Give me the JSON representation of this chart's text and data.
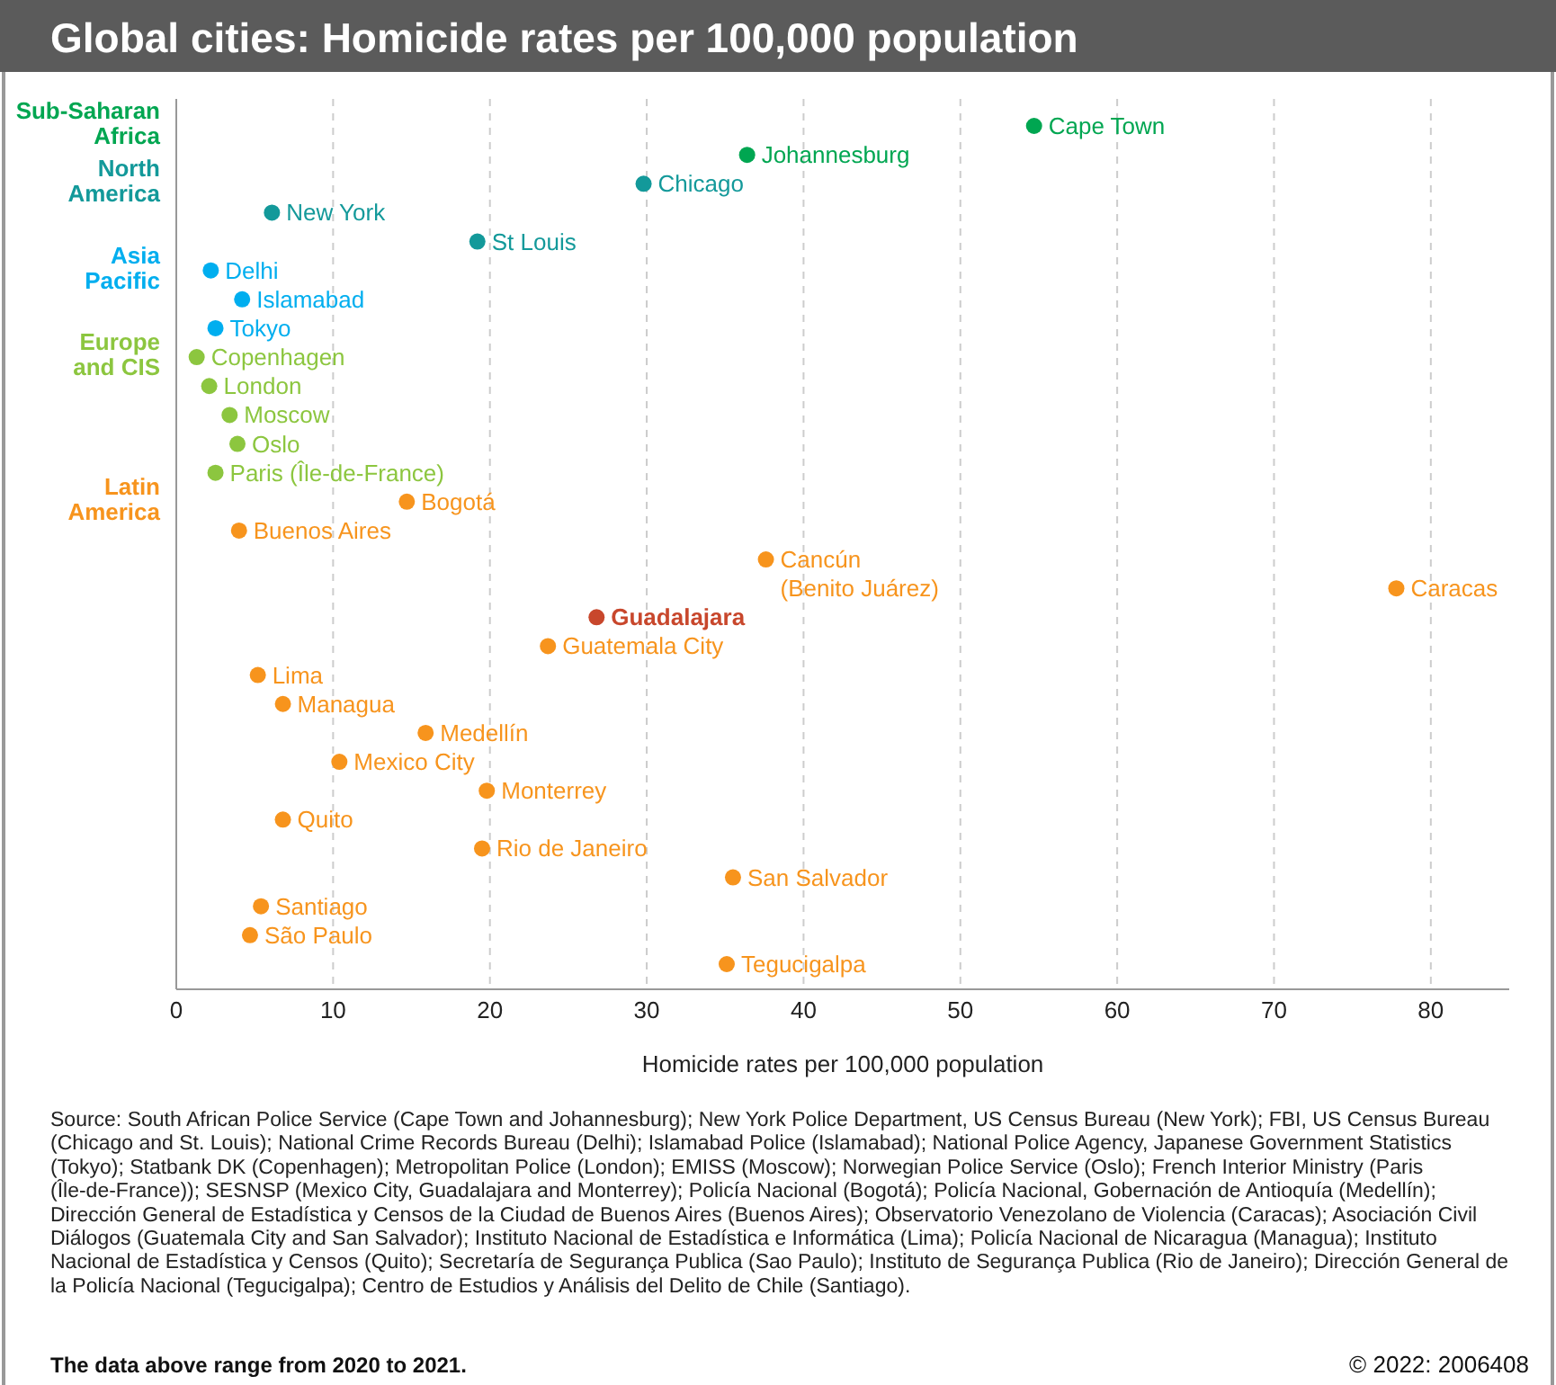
{
  "chart_data": {
    "type": "scatter",
    "orientation": "horizontal",
    "title": "Global cities: Homicide rates per 100,000 population",
    "xlabel": "Homicide rates per 100,000 population",
    "categories": [
      "Cape Town",
      "Johannesburg",
      "Chicago",
      "New York",
      "St Louis",
      "Delhi",
      "Islamabad",
      "Tokyo",
      "Copenhagen",
      "London",
      "Moscow",
      "Oslo",
      "Paris (Île-de-France)",
      "Bogotá",
      "Buenos Aires",
      "Cancún\n(Benito Juárez)",
      "Caracas",
      "Guadalajara",
      "Guatemala City",
      "Lima",
      "Managua",
      "Medellín",
      "Mexico City",
      "Monterrey",
      "Quito",
      "Rio de Janeiro",
      "San Salvador",
      "Santiago",
      "São Paulo",
      "Tegucigalpa"
    ],
    "series": [
      {
        "name": "Sub-Saharan Africa",
        "color": "#00a651",
        "values": [
          54.7,
          36.4,
          null,
          null,
          null,
          null,
          null,
          null,
          null,
          null,
          null,
          null,
          null,
          null,
          null,
          null,
          null,
          null,
          null,
          null,
          null,
          null,
          null,
          null,
          null,
          null,
          null,
          null,
          null,
          null
        ]
      },
      {
        "name": "North America",
        "color": "#13999a",
        "values": [
          null,
          null,
          29.8,
          6.1,
          19.2,
          null,
          null,
          null,
          null,
          null,
          null,
          null,
          null,
          null,
          null,
          null,
          null,
          null,
          null,
          null,
          null,
          null,
          null,
          null,
          null,
          null,
          null,
          null,
          null,
          null
        ]
      },
      {
        "name": "Asia Pacific",
        "color": "#00aeef",
        "values": [
          null,
          null,
          null,
          null,
          null,
          2.2,
          4.2,
          2.5,
          null,
          null,
          null,
          null,
          null,
          null,
          null,
          null,
          null,
          null,
          null,
          null,
          null,
          null,
          null,
          null,
          null,
          null,
          null,
          null,
          null,
          null
        ]
      },
      {
        "name": "Europe and CIS",
        "color": "#8cc63f",
        "values": [
          null,
          null,
          null,
          null,
          null,
          null,
          null,
          null,
          1.3,
          2.1,
          3.4,
          3.9,
          2.5,
          null,
          null,
          null,
          null,
          null,
          null,
          null,
          null,
          null,
          null,
          null,
          null,
          null,
          null,
          null,
          null,
          null
        ]
      },
      {
        "name": "Latin America",
        "color": "#f7941d",
        "values": [
          null,
          null,
          null,
          null,
          null,
          null,
          null,
          null,
          null,
          null,
          null,
          null,
          null,
          14.7,
          4.0,
          37.6,
          77.8,
          26.8,
          23.7,
          5.2,
          6.8,
          15.9,
          10.4,
          19.8,
          6.8,
          19.5,
          35.5,
          5.4,
          4.7,
          35.1
        ],
        "colors": [
          null,
          null,
          null,
          null,
          null,
          null,
          null,
          null,
          null,
          null,
          null,
          null,
          null,
          "#f7941d",
          "#f7941d",
          "#f7941d",
          "#f7941d",
          "#c8472c",
          "#f7941d",
          "#f7941d",
          "#f7941d",
          "#f7941d",
          "#f7941d",
          "#f7941d",
          "#f7941d",
          "#f7941d",
          "#f7941d",
          "#f7941d",
          "#f7941d",
          "#f7941d"
        ]
      }
    ],
    "xlim": [
      0,
      85
    ],
    "xticks": [
      0,
      10,
      20,
      30,
      40,
      50,
      60,
      70,
      80
    ],
    "grid": "x",
    "legend": "left",
    "marker": "circle",
    "annotations": [
      "Source: South African Police Service (Cape Town and Johannesburg); New York Police Department, US Census Bureau (New York); FBI, US Census Bureau (Chicago and St. Louis); National Crime Records Bureau (Delhi); Islamabad Police (Islamabad); National Police Agency, Japanese Government Statistics (Tokyo); Statbank DK (Copenhagen); Metropolitan Police (London); EMISS (Moscow); Norwegian Police Service (Oslo); French Interior Ministry (Paris (Île-de-France)); SESNSP (Mexico City, Guadalajara and Monterrey); Policía Nacional (Bogotá); Policía Nacional, Gobernación de Antioquía (Medellín); Dirección General de Estadística y Censos de la Ciudad de Buenos Aires (Buenos Aires); Observatorio Venezolano de Violencia (Caracas); Asociación Civil Diálogos (Guatemala City and San Salvador); Instituto Nacional de Estadística e Informática (Lima); Policía Nacional de Nicaragua (Managua); Instituto Nacional de Estadística y Censos (Quito); Secretaría de Segurança Publica (Sao Paulo); Instituto de Segurança Publica (Rio de Janeiro); Dirección General de la Policía Nacional (Tegucigalpa); Centro de Estudios y Análisis del Delito de Chile (Santiago).",
      "The data above range from 2020 to 2021.",
      "© 2022: 2006408"
    ]
  }
}
